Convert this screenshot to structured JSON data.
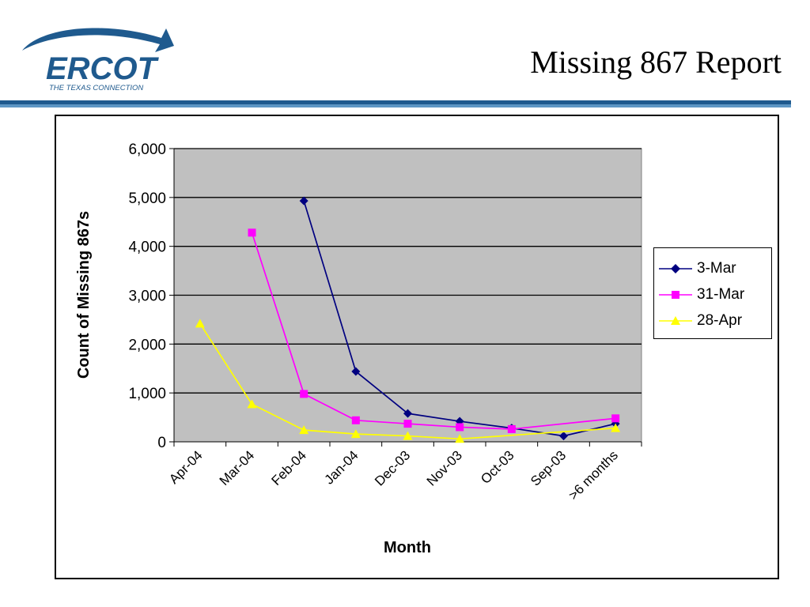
{
  "slide": {
    "title": "Missing 867 Report",
    "logo": {
      "wordmark": "ERCOT",
      "tagline": "THE TEXAS CONNECTION",
      "icon": "ercot-swoosh-logo"
    }
  },
  "colors": {
    "plot_background": "#c0c0c0",
    "header_rule_dark": "#1f5a8e",
    "header_rule_light": "#5d96c4",
    "logo_blue": "#1f5a8e"
  },
  "chart_data": {
    "type": "line",
    "title": "",
    "xlabel": "Month",
    "ylabel": "Count of Missing 867s",
    "categories": [
      "Apr-04",
      "Mar-04",
      "Feb-04",
      "Jan-04",
      "Dec-03",
      "Nov-03",
      "Oct-03",
      "Sep-03",
      ">6 months"
    ],
    "ylim": [
      0,
      6000
    ],
    "yticks": [
      0,
      1000,
      2000,
      3000,
      4000,
      5000,
      6000
    ],
    "ytick_labels": [
      "0",
      "1,000",
      "2,000",
      "3,000",
      "4,000",
      "5,000",
      "6,000"
    ],
    "grid": "horizontal major gridlines",
    "legend_position": "right",
    "series": [
      {
        "name": "3-Mar",
        "color": "#000080",
        "marker": "diamond",
        "values": [
          null,
          null,
          4930,
          1440,
          580,
          420,
          280,
          120,
          370
        ]
      },
      {
        "name": "31-Mar",
        "color": "#ff00ff",
        "marker": "square",
        "values": [
          null,
          4280,
          980,
          440,
          370,
          300,
          260,
          null,
          480
        ]
      },
      {
        "name": "28-Apr",
        "color": "#ffff00",
        "marker": "triangle",
        "values": [
          2420,
          770,
          240,
          160,
          120,
          60,
          null,
          null,
          280
        ]
      }
    ]
  }
}
